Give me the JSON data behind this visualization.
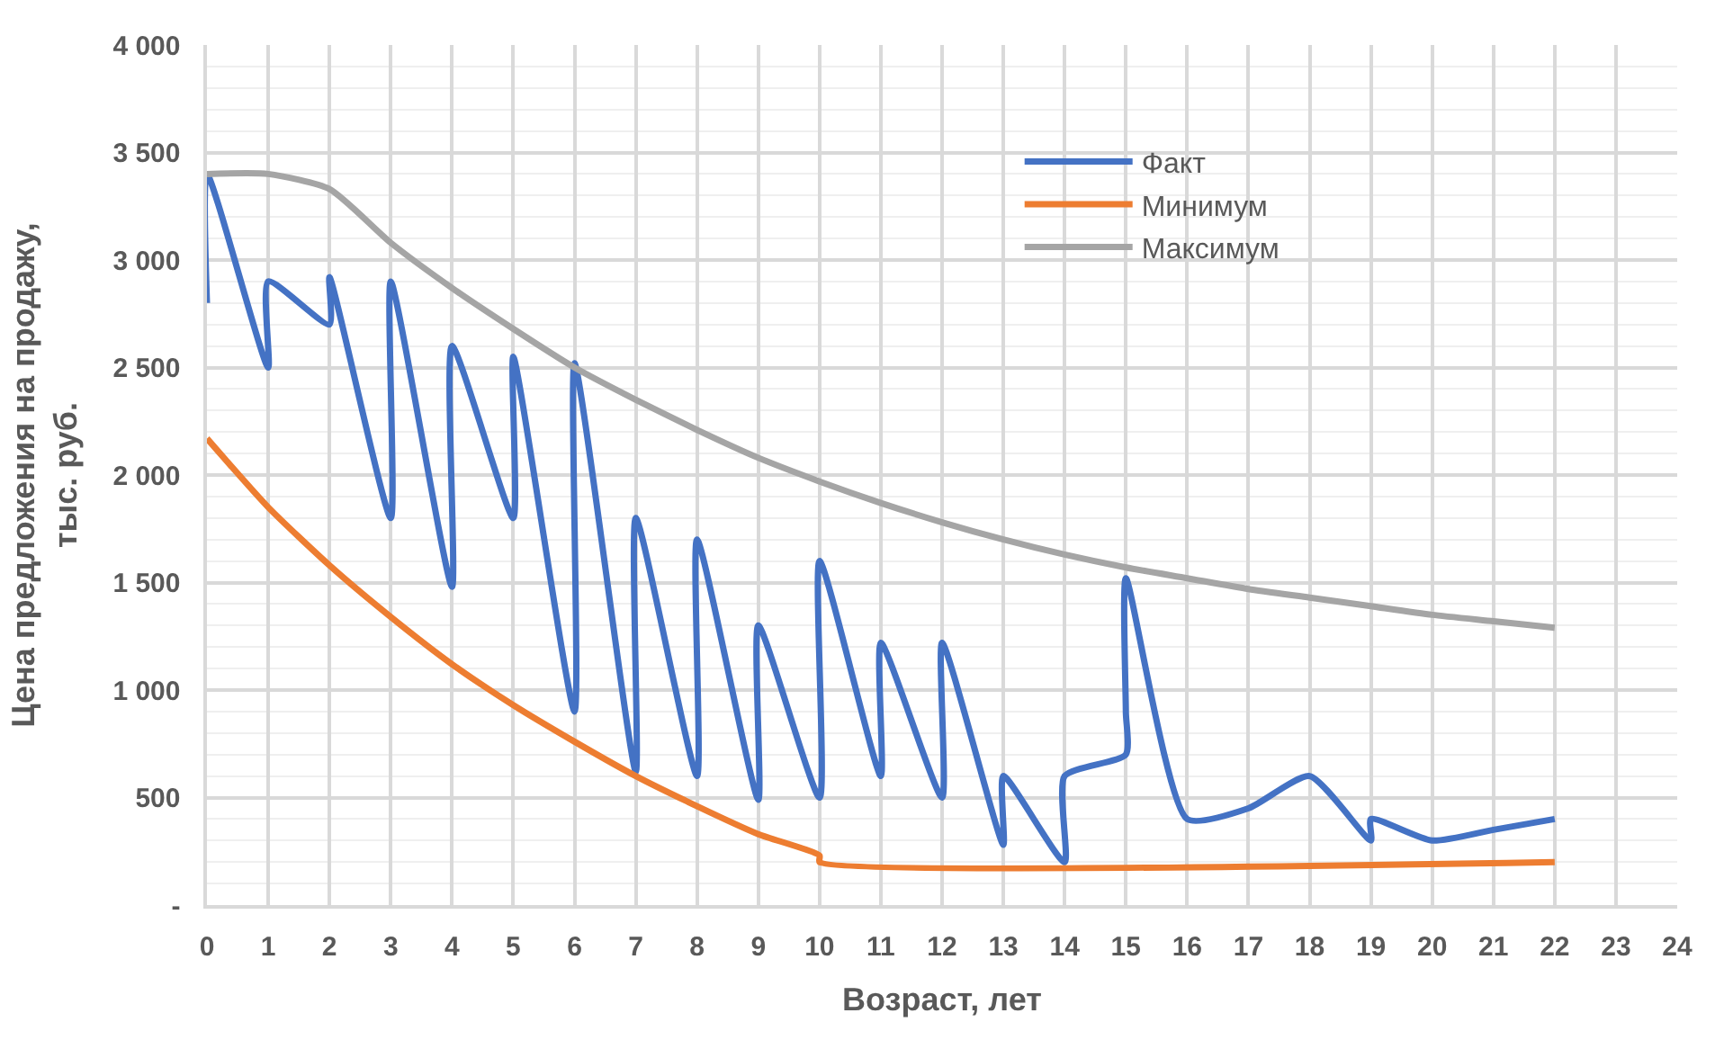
{
  "chart_data": {
    "type": "line",
    "xlabel": "Возраст, лет",
    "ylabel": "Цена предложения на продажу, тыс. руб.",
    "xlim": [
      0,
      24
    ],
    "xticks": [
      0,
      1,
      2,
      3,
      4,
      5,
      6,
      7,
      8,
      9,
      10,
      11,
      12,
      13,
      14,
      15,
      16,
      17,
      18,
      19,
      20,
      21,
      22,
      23,
      24
    ],
    "ylim": [
      0,
      4000
    ],
    "yticks": [
      {
        "value": 0,
        "label": "-"
      },
      500,
      {
        "value": 1000,
        "label": "1 000"
      },
      {
        "value": 1500,
        "label": "1 500"
      },
      {
        "value": 2000,
        "label": "2 000"
      },
      {
        "value": 2500,
        "label": "2 500"
      },
      {
        "value": 3000,
        "label": "3 000"
      },
      {
        "value": 3500,
        "label": "3 500"
      },
      {
        "value": 4000,
        "label": "4 000"
      }
    ],
    "grid": true,
    "legend": "top right",
    "marker": "none",
    "line_style": "solid",
    "series": [
      {
        "name": "Факт",
        "color": "#4472c4",
        "x": [
          0,
          0,
          1,
          1,
          2,
          2,
          3,
          3,
          4,
          4,
          5,
          5,
          6,
          6,
          7,
          7,
          8,
          8,
          9,
          9,
          10,
          10,
          11,
          11,
          12,
          12,
          13,
          13,
          14,
          14,
          15,
          15,
          15,
          16,
          17,
          18,
          19,
          19,
          20,
          21,
          22
        ],
        "values": [
          2800,
          3400,
          2500,
          2900,
          2700,
          2920,
          1800,
          2900,
          1480,
          2600,
          1800,
          2550,
          900,
          2520,
          620,
          1800,
          600,
          1700,
          490,
          1300,
          500,
          1600,
          600,
          1220,
          500,
          1220,
          280,
          600,
          200,
          600,
          700,
          900,
          1520,
          400,
          450,
          600,
          300,
          400,
          300,
          350,
          400
        ]
      },
      {
        "name": "Минимум",
        "color": "#ed7d31",
        "x": [
          0,
          1,
          2,
          3,
          4,
          5,
          6,
          7,
          8,
          9,
          10,
          10,
          22
        ],
        "values": [
          2170,
          1850,
          1580,
          1340,
          1120,
          930,
          760,
          600,
          460,
          330,
          230,
          200,
          200
        ]
      },
      {
        "name": "Максимум",
        "color": "#a5a5a5",
        "x": [
          0,
          1,
          2,
          3,
          4,
          5,
          6,
          7,
          8,
          9,
          10,
          11,
          12,
          13,
          14,
          15,
          16,
          17,
          18,
          19,
          20,
          21,
          22
        ],
        "values": [
          3400,
          3400,
          3330,
          3080,
          2870,
          2680,
          2500,
          2350,
          2210,
          2080,
          1970,
          1870,
          1780,
          1700,
          1630,
          1570,
          1520,
          1470,
          1430,
          1390,
          1350,
          1320,
          1290
        ]
      }
    ]
  }
}
